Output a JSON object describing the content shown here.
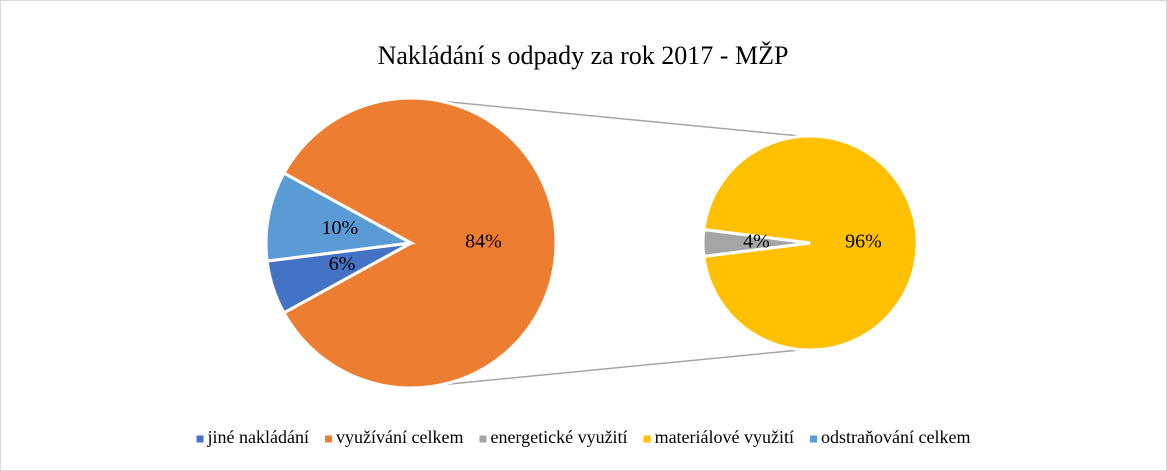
{
  "chart_data": {
    "type": "pie-of-pie",
    "title": "Nakládání s odpady za rok 2017 - MŽP",
    "categories": [
      "jiné nakládání",
      "využívání celkem",
      "energetické využití",
      "materiálové využití",
      "odstraňování celkem"
    ],
    "values": [
      6,
      84,
      4,
      96,
      10
    ],
    "value_labels": [
      "6%",
      "84%",
      "4%",
      "96%",
      "10%"
    ],
    "colors": [
      "#4472c4",
      "#ed7d31",
      "#a5a5a5",
      "#ffc000",
      "#5b9bd5"
    ],
    "secondary": [
      false,
      false,
      true,
      true,
      false
    ],
    "legend": "bottom"
  }
}
